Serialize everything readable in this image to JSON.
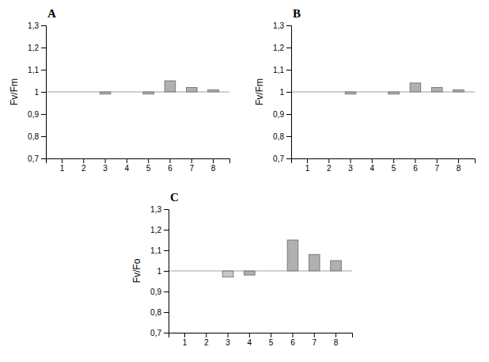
{
  "chart_data": [
    {
      "type": "bar",
      "title": "A",
      "ylabel": "Fv/Fm",
      "categories": [
        "1",
        "2",
        "3",
        "4",
        "5",
        "6",
        "7",
        "8"
      ],
      "values": [
        1.0,
        1.0,
        0.99,
        1.0,
        0.99,
        1.05,
        1.02,
        1.01
      ],
      "baseline": 1.0,
      "color": "#b0b0b0",
      "ylim": [
        0.7,
        1.3
      ],
      "yticks": [
        {
          "value": 0.7,
          "label": "0,7"
        },
        {
          "value": 0.8,
          "label": "0,8"
        },
        {
          "value": 0.9,
          "label": "0,9"
        },
        1,
        {
          "value": 1.1,
          "label": "1,1"
        },
        {
          "value": 1.2,
          "label": "1,2"
        },
        {
          "value": 1.3,
          "label": "1,3"
        }
      ]
    },
    {
      "type": "bar",
      "title": "B",
      "ylabel": "Fv/Fm",
      "categories": [
        "1",
        "2",
        "3",
        "4",
        "5",
        "6",
        "7",
        "8"
      ],
      "values": [
        1.0,
        1.0,
        0.99,
        1.0,
        0.99,
        1.04,
        1.02,
        1.01
      ],
      "baseline": 1.0,
      "color": "#b0b0b0",
      "ylim": [
        0.7,
        1.3
      ],
      "yticks": [
        {
          "value": 0.7,
          "label": "0,7"
        },
        {
          "value": 0.8,
          "label": "0,8"
        },
        {
          "value": 0.9,
          "label": "0,9"
        },
        1,
        {
          "value": 1.1,
          "label": "1,1"
        },
        {
          "value": 1.2,
          "label": "1,2"
        },
        {
          "value": 1.3,
          "label": "1,3"
        }
      ]
    },
    {
      "type": "bar",
      "title": "C",
      "ylabel": "Fv/Fo",
      "categories": [
        "1",
        "2",
        "3",
        "4",
        "5",
        "6",
        "7",
        "8"
      ],
      "values": [
        1.0,
        1.0,
        0.97,
        0.98,
        1.0,
        1.15,
        1.08,
        1.05
      ],
      "baseline": 1.0,
      "colors": [
        "#b0b0b0",
        "#b0b0b0",
        "#c8c8c8",
        "#b0b0b0",
        "#b0b0b0",
        "#b0b0b0",
        "#b0b0b0",
        "#b0b0b0"
      ],
      "ylim": [
        0.7,
        1.3
      ],
      "yticks": [
        {
          "value": 0.7,
          "label": "0,7"
        },
        {
          "value": 0.8,
          "label": "0,8"
        },
        {
          "value": 0.9,
          "label": "0,9"
        },
        1,
        {
          "value": 1.1,
          "label": "1,1"
        },
        {
          "value": 1.2,
          "label": "1,2"
        },
        {
          "value": 1.3,
          "label": "1,3"
        }
      ]
    }
  ]
}
